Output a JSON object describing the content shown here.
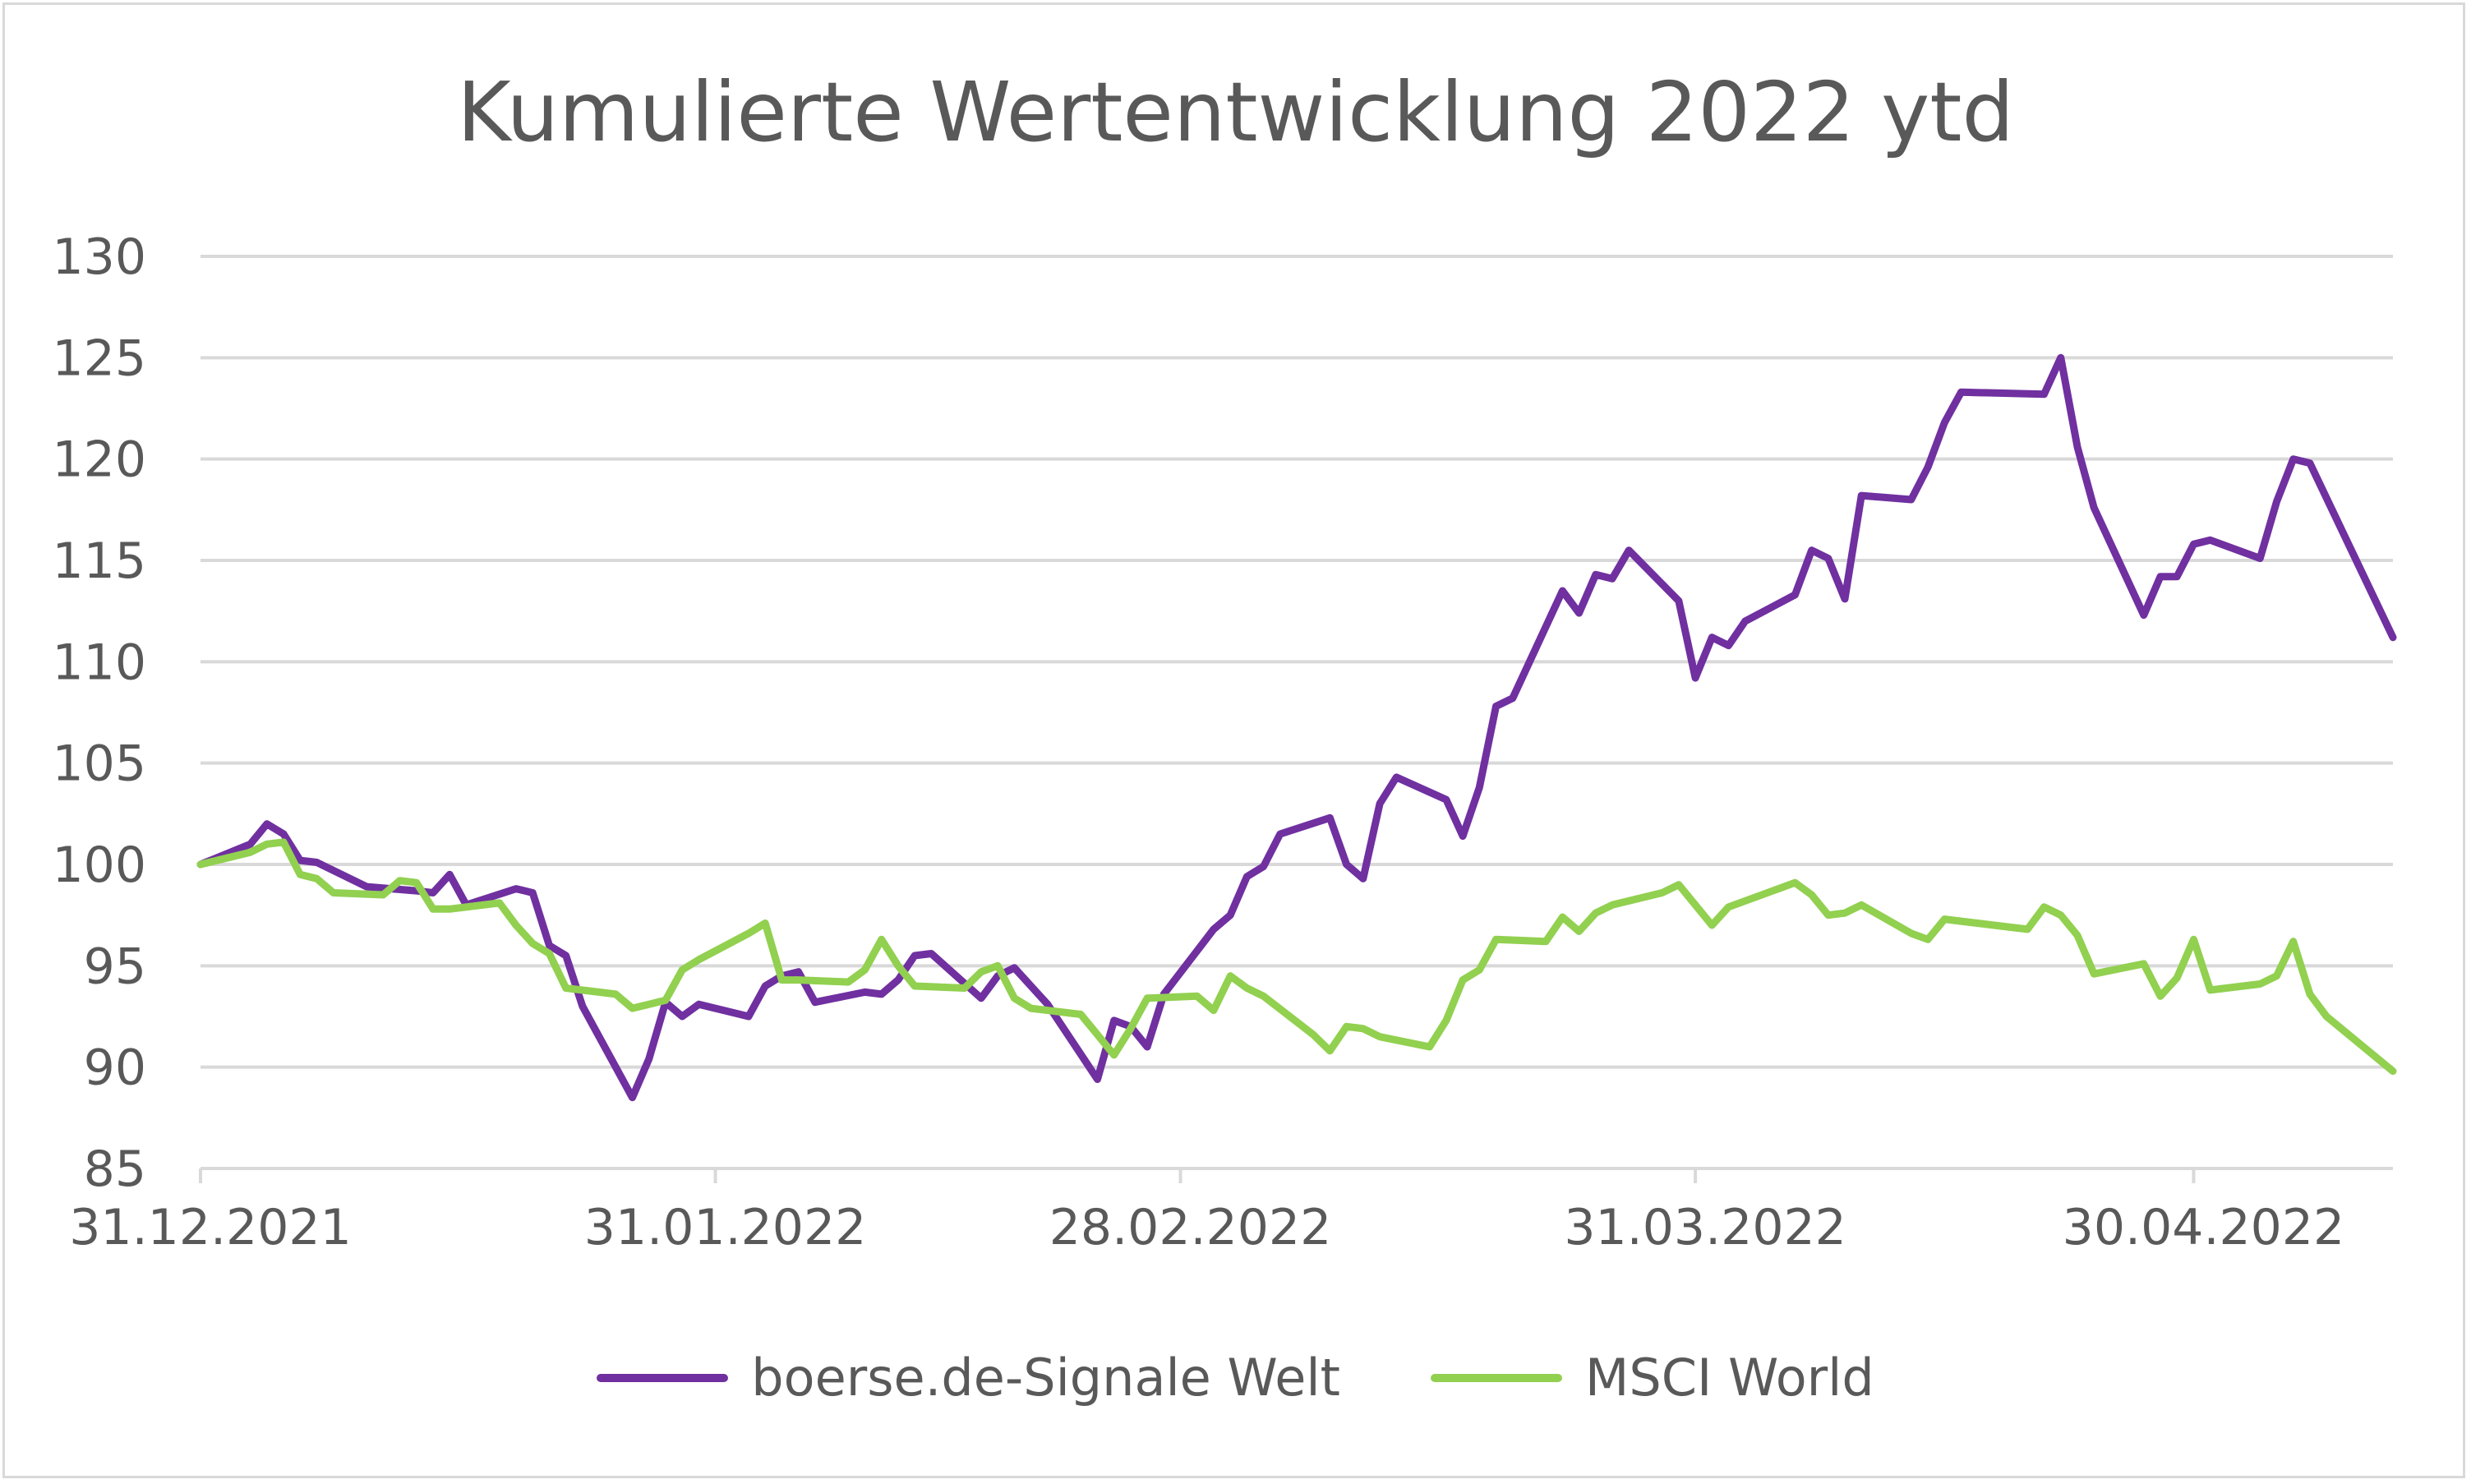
{
  "chart_data": {
    "type": "line",
    "title": "Kumulierte Wertentwicklung 2022 ytd",
    "xlabel": "",
    "ylabel": "",
    "ylim": [
      85,
      130
    ],
    "y_ticks": [
      85,
      90,
      95,
      100,
      105,
      110,
      115,
      120,
      125,
      130
    ],
    "x_range": [
      "2021-12-31",
      "2022-05-12"
    ],
    "x_ticks": [
      {
        "date": "2021-12-31",
        "label": "31.12.2021"
      },
      {
        "date": "2022-01-31",
        "label": "31.01.2022"
      },
      {
        "date": "2022-02-28",
        "label": "28.02.2022"
      },
      {
        "date": "2022-03-31",
        "label": "31.03.2022"
      },
      {
        "date": "2022-04-30",
        "label": "30.04.2022"
      }
    ],
    "grid": true,
    "legend_position": "bottom",
    "series": [
      {
        "name": "boerse.de-Signale Welt",
        "color": "#7030a0",
        "points": [
          [
            "2021-12-31",
            100
          ],
          [
            "2022-01-03",
            101
          ],
          [
            "2022-01-04",
            102
          ],
          [
            "2022-01-05",
            101.5
          ],
          [
            "2022-01-06",
            100.2
          ],
          [
            "2022-01-07",
            100.1
          ],
          [
            "2022-01-10",
            98.9
          ],
          [
            "2022-01-13",
            98.7
          ],
          [
            "2022-01-14",
            98.6
          ],
          [
            "2022-01-15",
            99.5
          ],
          [
            "2022-01-16",
            98
          ],
          [
            "2022-01-19",
            98.8
          ],
          [
            "2022-01-20",
            98.6
          ],
          [
            "2022-01-21",
            96
          ],
          [
            "2022-01-22",
            95.5
          ],
          [
            "2022-01-23",
            93
          ],
          [
            "2022-01-26",
            88.5
          ],
          [
            "2022-01-27",
            90.4
          ],
          [
            "2022-01-28",
            93.2
          ],
          [
            "2022-01-29",
            92.5
          ],
          [
            "2022-01-30",
            93.1
          ],
          [
            "2022-02-02",
            92.5
          ],
          [
            "2022-02-03",
            94
          ],
          [
            "2022-02-04",
            94.5
          ],
          [
            "2022-02-05",
            94.7
          ],
          [
            "2022-02-06",
            93.2
          ],
          [
            "2022-02-09",
            93.7
          ],
          [
            "2022-02-10",
            93.6
          ],
          [
            "2022-02-11",
            94.3
          ],
          [
            "2022-02-12",
            95.5
          ],
          [
            "2022-02-13",
            95.6
          ],
          [
            "2022-02-16",
            93.4
          ],
          [
            "2022-02-17",
            94.5
          ],
          [
            "2022-02-18",
            94.9
          ],
          [
            "2022-02-19",
            94
          ],
          [
            "2022-02-20",
            93.1
          ],
          [
            "2022-02-23",
            89.4
          ],
          [
            "2022-02-24",
            92.3
          ],
          [
            "2022-02-25",
            92
          ],
          [
            "2022-02-26",
            91
          ],
          [
            "2022-02-27",
            93.6
          ],
          [
            "2022-03-02",
            96.8
          ],
          [
            "2022-03-03",
            97.5
          ],
          [
            "2022-03-04",
            99.4
          ],
          [
            "2022-03-05",
            99.9
          ],
          [
            "2022-03-06",
            101.5
          ],
          [
            "2022-03-09",
            102.3
          ],
          [
            "2022-03-10",
            100
          ],
          [
            "2022-03-11",
            99.3
          ],
          [
            "2022-03-12",
            103
          ],
          [
            "2022-03-13",
            104.3
          ],
          [
            "2022-03-16",
            103.2
          ],
          [
            "2022-03-17",
            101.4
          ],
          [
            "2022-03-18",
            103.8
          ],
          [
            "2022-03-19",
            107.8
          ],
          [
            "2022-03-20",
            108.2
          ],
          [
            "2022-03-23",
            113.5
          ],
          [
            "2022-03-24",
            112.4
          ],
          [
            "2022-03-25",
            114.3
          ],
          [
            "2022-03-26",
            114.1
          ],
          [
            "2022-03-27",
            115.5
          ],
          [
            "2022-03-30",
            113
          ],
          [
            "2022-03-31",
            109.2
          ],
          [
            "2022-04-01",
            111.2
          ],
          [
            "2022-04-02",
            110.8
          ],
          [
            "2022-04-03",
            112
          ],
          [
            "2022-04-06",
            113.3
          ],
          [
            "2022-04-07",
            115.5
          ],
          [
            "2022-04-08",
            115.1
          ],
          [
            "2022-04-09",
            113.1
          ],
          [
            "2022-04-10",
            118.2
          ],
          [
            "2022-04-13",
            118
          ],
          [
            "2022-04-14",
            119.6
          ],
          [
            "2022-04-15",
            121.8
          ],
          [
            "2022-04-16",
            123.3
          ],
          [
            "2022-04-21",
            123.2
          ],
          [
            "2022-04-22",
            125
          ],
          [
            "2022-04-23",
            120.6
          ],
          [
            "2022-04-24",
            117.6
          ],
          [
            "2022-04-27",
            112.3
          ],
          [
            "2022-04-28",
            114.2
          ],
          [
            "2022-04-29",
            114.2
          ],
          [
            "2022-04-30",
            115.8
          ],
          [
            "2022-05-01",
            116
          ],
          [
            "2022-05-04",
            115.1
          ],
          [
            "2022-05-05",
            117.9
          ],
          [
            "2022-05-06",
            120
          ],
          [
            "2022-05-07",
            119.8
          ],
          [
            "2022-05-12",
            111.2
          ]
        ]
      },
      {
        "name": "MSCI World",
        "color": "#92d050",
        "points": [
          [
            "2021-12-31",
            100
          ],
          [
            "2022-01-03",
            100.6
          ],
          [
            "2022-01-04",
            101
          ],
          [
            "2022-01-05",
            101.1
          ],
          [
            "2022-01-06",
            99.5
          ],
          [
            "2022-01-07",
            99.3
          ],
          [
            "2022-01-08",
            98.6
          ],
          [
            "2022-01-11",
            98.5
          ],
          [
            "2022-01-12",
            99.2
          ],
          [
            "2022-01-13",
            99.1
          ],
          [
            "2022-01-14",
            97.8
          ],
          [
            "2022-01-15",
            97.8
          ],
          [
            "2022-01-18",
            98.1
          ],
          [
            "2022-01-19",
            97
          ],
          [
            "2022-01-20",
            96.1
          ],
          [
            "2022-01-21",
            95.6
          ],
          [
            "2022-01-22",
            93.9
          ],
          [
            "2022-01-25",
            93.6
          ],
          [
            "2022-01-26",
            92.9
          ],
          [
            "2022-01-27",
            93.1
          ],
          [
            "2022-01-28",
            93.3
          ],
          [
            "2022-01-29",
            94.8
          ],
          [
            "2022-01-30",
            95.3
          ],
          [
            "2022-02-02",
            96.6
          ],
          [
            "2022-02-03",
            97.1
          ],
          [
            "2022-02-04",
            94.3
          ],
          [
            "2022-02-05",
            94.3
          ],
          [
            "2022-02-08",
            94.2
          ],
          [
            "2022-02-09",
            94.8
          ],
          [
            "2022-02-10",
            96.3
          ],
          [
            "2022-02-11",
            95
          ],
          [
            "2022-02-12",
            94
          ],
          [
            "2022-02-15",
            93.9
          ],
          [
            "2022-02-16",
            94.7
          ],
          [
            "2022-02-17",
            95
          ],
          [
            "2022-02-18",
            93.4
          ],
          [
            "2022-02-19",
            92.9
          ],
          [
            "2022-02-22",
            92.6
          ],
          [
            "2022-02-23",
            91.6
          ],
          [
            "2022-02-24",
            90.6
          ],
          [
            "2022-02-25",
            91.9
          ],
          [
            "2022-02-26",
            93.4
          ],
          [
            "2022-03-01",
            93.5
          ],
          [
            "2022-03-02",
            92.8
          ],
          [
            "2022-03-03",
            94.5
          ],
          [
            "2022-03-04",
            93.9
          ],
          [
            "2022-03-05",
            93.5
          ],
          [
            "2022-03-08",
            91.6
          ],
          [
            "2022-03-09",
            90.8
          ],
          [
            "2022-03-10",
            92
          ],
          [
            "2022-03-11",
            91.9
          ],
          [
            "2022-03-12",
            91.5
          ],
          [
            "2022-03-15",
            91
          ],
          [
            "2022-03-16",
            92.3
          ],
          [
            "2022-03-17",
            94.3
          ],
          [
            "2022-03-18",
            94.8
          ],
          [
            "2022-03-19",
            96.3
          ],
          [
            "2022-03-22",
            96.2
          ],
          [
            "2022-03-23",
            97.4
          ],
          [
            "2022-03-24",
            96.7
          ],
          [
            "2022-03-25",
            97.6
          ],
          [
            "2022-03-26",
            98
          ],
          [
            "2022-03-29",
            98.6
          ],
          [
            "2022-03-30",
            99
          ],
          [
            "2022-03-31",
            98
          ],
          [
            "2022-04-01",
            97
          ],
          [
            "2022-04-02",
            97.9
          ],
          [
            "2022-04-05",
            98.8
          ],
          [
            "2022-04-06",
            99.1
          ],
          [
            "2022-04-07",
            98.5
          ],
          [
            "2022-04-08",
            97.5
          ],
          [
            "2022-04-09",
            97.6
          ],
          [
            "2022-04-10",
            98
          ],
          [
            "2022-04-13",
            96.6
          ],
          [
            "2022-04-14",
            96.3
          ],
          [
            "2022-04-15",
            97.3
          ],
          [
            "2022-04-16",
            97.2
          ],
          [
            "2022-04-19",
            96.9
          ],
          [
            "2022-04-20",
            96.8
          ],
          [
            "2022-04-21",
            97.9
          ],
          [
            "2022-04-22",
            97.5
          ],
          [
            "2022-04-23",
            96.5
          ],
          [
            "2022-04-24",
            94.6
          ],
          [
            "2022-04-27",
            95.1
          ],
          [
            "2022-04-28",
            93.5
          ],
          [
            "2022-04-29",
            94.4
          ],
          [
            "2022-04-30",
            96.3
          ],
          [
            "2022-05-01",
            93.8
          ],
          [
            "2022-05-04",
            94.1
          ],
          [
            "2022-05-05",
            94.5
          ],
          [
            "2022-05-06",
            96.2
          ],
          [
            "2022-05-07",
            93.6
          ],
          [
            "2022-05-08",
            92.5
          ],
          [
            "2022-05-12",
            89.8
          ]
        ]
      }
    ]
  }
}
